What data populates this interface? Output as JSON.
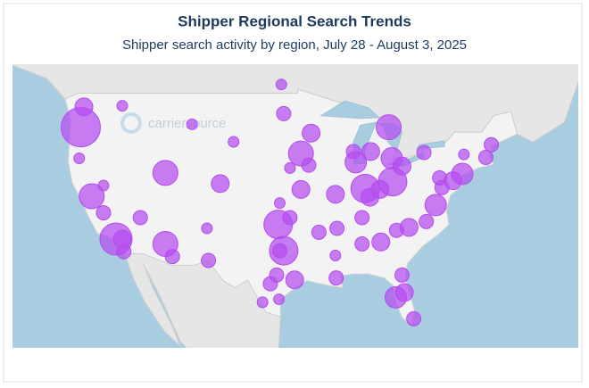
{
  "chart_data": {
    "type": "bubble_map",
    "title": "Shipper Regional Search Trends",
    "subtitle": "Shipper search activity by region, July 28 - August 3, 2025",
    "watermark": "carriersource",
    "color": "#b44cf0",
    "lon": [
      -122.7,
      -122.3,
      -117.4,
      -111.9,
      -121.3,
      -118.2,
      -117.4,
      -117.2,
      -119.8,
      -115.1,
      -111.9,
      -111.0,
      -104.9,
      -106.6,
      -106.4,
      -96.8,
      -97.3,
      -95.4,
      -98.5,
      -97.7,
      -97.5,
      -94.6,
      -96.0,
      -93.3,
      -87.6,
      -87.9,
      -83.4,
      -86.4,
      -82.9,
      -81.7,
      -90.2,
      -94.6,
      -90.0,
      -86.8,
      -84.4,
      -80.8,
      -75.2,
      -74.0,
      -71.0,
      -77.4,
      -81.7,
      -81.4,
      -82.5,
      -80.2,
      -86.8,
      -90.1,
      -90.2,
      -85.8,
      -84.5,
      -78.9,
      -73.8,
      -70.3,
      -76.6,
      -76.9,
      -82.4,
      -78.6,
      -92.3,
      -96.0,
      -97.3,
      -93.6,
      -96.8,
      -85.7,
      -108.5,
      -103.2,
      -97.1,
      -99.5,
      -97.4,
      -119.8,
      -122.9,
      -83.0
    ],
    "lat": [
      45.5,
      47.6,
      47.7,
      40.8,
      38.4,
      34.0,
      34.0,
      32.7,
      36.7,
      36.2,
      33.5,
      32.2,
      39.7,
      35.1,
      31.8,
      32.8,
      32.8,
      29.8,
      29.4,
      30.3,
      35.5,
      39.1,
      41.3,
      44.9,
      41.9,
      43.0,
      45.5,
      39.2,
      39.9,
      41.5,
      38.6,
      42.8,
      35.1,
      36.2,
      33.7,
      35.2,
      40.0,
      40.7,
      42.4,
      37.5,
      30.3,
      28.5,
      28.0,
      25.8,
      33.5,
      30.0,
      32.3,
      38.3,
      39.1,
      42.9,
      42.7,
      43.7,
      39.3,
      40.3,
      34.9,
      35.8,
      34.7,
      36.2,
      37.7,
      41.6,
      46.9,
      43.0,
      45.8,
      44.0,
      49.9,
      27.5,
      27.8,
      39.5,
      42.3,
      42.3
    ],
    "values": [
      10,
      4,
      2,
      6,
      6,
      8,
      4,
      3,
      3,
      3,
      6,
      3,
      4,
      2,
      3,
      7,
      3,
      4,
      3,
      3,
      7,
      4,
      2,
      4,
      5,
      3,
      6,
      7,
      7,
      4,
      4,
      6,
      3,
      3,
      4,
      4,
      4,
      5,
      3,
      5,
      3,
      4,
      5,
      3,
      3,
      3,
      2,
      4,
      4,
      3,
      2,
      3,
      3,
      3,
      3,
      3,
      3,
      3,
      2,
      3,
      3,
      4,
      2,
      2,
      2,
      2,
      2,
      2,
      2,
      5
    ]
  }
}
